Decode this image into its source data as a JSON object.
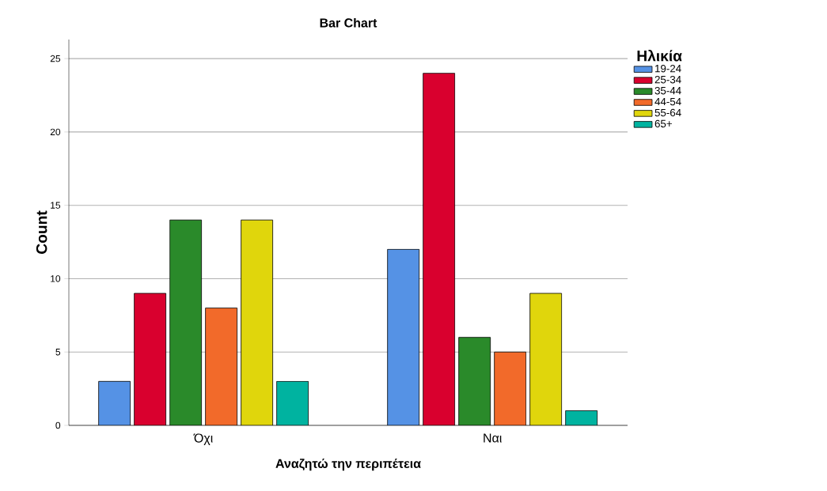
{
  "chart_data": {
    "type": "bar",
    "title": "Bar Chart",
    "xlabel": "Αναζητώ την περιπέτεια",
    "ylabel": "Count",
    "legend_title": "Ηλικία",
    "categories": [
      "Όχι",
      "Ναι"
    ],
    "series": [
      {
        "name": "19-24",
        "color": "#5592e5",
        "values": [
          3,
          12
        ]
      },
      {
        "name": "25-34",
        "color": "#d9002e",
        "values": [
          9,
          24
        ]
      },
      {
        "name": "35-44",
        "color": "#2a8a2a",
        "values": [
          14,
          6
        ]
      },
      {
        "name": "44-54",
        "color": "#f26a2a",
        "values": [
          8,
          5
        ]
      },
      {
        "name": "55-64",
        "color": "#e0d60c",
        "values": [
          14,
          9
        ]
      },
      {
        "name": "65+",
        "color": "#00b3a0",
        "values": [
          3,
          1
        ]
      }
    ],
    "ylim": [
      0,
      26.3
    ],
    "yticks": [
      0,
      5,
      10,
      15,
      20,
      25
    ],
    "grid": "y",
    "legend": "top right"
  }
}
